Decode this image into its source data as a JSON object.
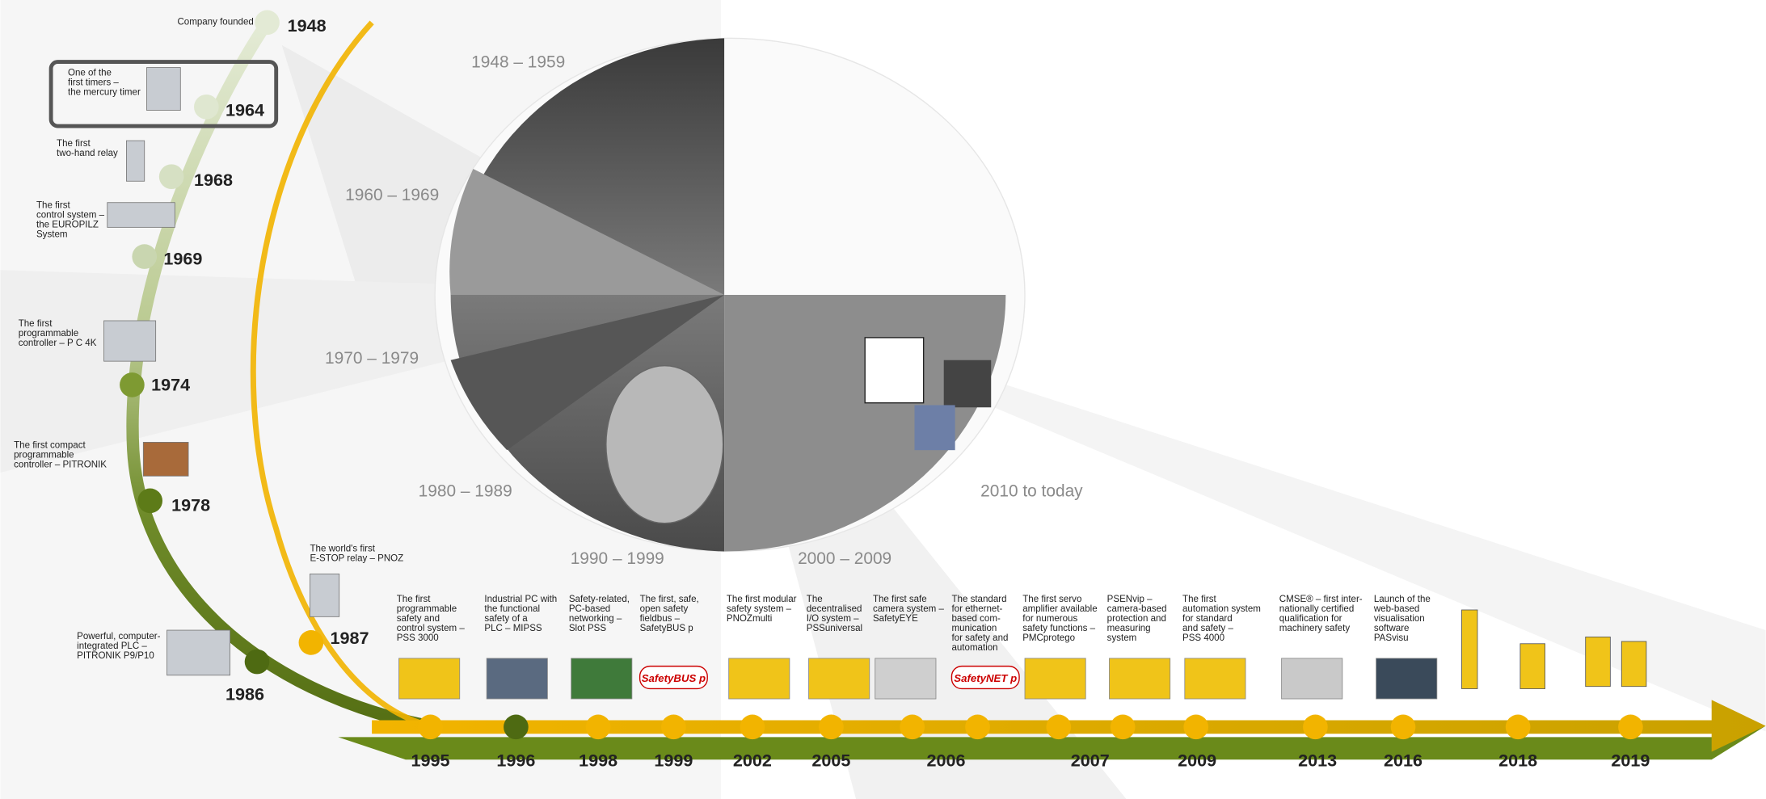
{
  "decades": [
    "1948 – 1959",
    "1960 – 1969",
    "1970 – 1979",
    "1980 – 1989",
    "1990 – 1999",
    "2000 – 2009",
    "2010 to today"
  ],
  "left_milestones": [
    {
      "year": "1948",
      "lines": [
        "Company founded"
      ]
    },
    {
      "year": "1964",
      "lines": [
        "One of the",
        "first timers –",
        "the mercury timer"
      ]
    },
    {
      "year": "1968",
      "lines": [
        "The first",
        "two-hand relay"
      ]
    },
    {
      "year": "1969",
      "lines": [
        "The first",
        "control system –",
        "the EUROPILZ",
        "System"
      ]
    },
    {
      "year": "1974",
      "lines": [
        "The first",
        "programmable",
        "controller – P C 4K"
      ]
    },
    {
      "year": "1978",
      "lines": [
        "The first compact",
        "programmable",
        "controller – PITRONIK"
      ]
    },
    {
      "year": "1986",
      "lines": [
        "Powerful, computer-",
        "integrated PLC –",
        "PITRONIK P9/P10"
      ]
    },
    {
      "year": "1987",
      "lines": [
        "The world's first",
        "E-STOP relay – PNOZ"
      ]
    }
  ],
  "bottom_events": [
    {
      "lines": [
        "The first",
        "programmable",
        "safety and",
        "control system –",
        "PSS 3000"
      ]
    },
    {
      "lines": [
        "Industrial PC with",
        "the functional",
        "safety of a",
        "PLC – MIPSS"
      ]
    },
    {
      "lines": [
        "Safety-related,",
        "PC-based",
        "networking –",
        "Slot PSS"
      ]
    },
    {
      "lines": [
        "The first, safe,",
        "open safety",
        "fieldbus –",
        "SafetyBUS p"
      ],
      "logo": "SafetyBUS p"
    },
    {
      "lines": [
        "The first modular",
        "safety system –",
        "PNOZmulti"
      ]
    },
    {
      "lines": [
        "The",
        "decentralised",
        "I/O system –",
        "PSSuniversal"
      ]
    },
    {
      "lines": [
        "The first safe",
        "camera system –",
        "SafetyEYE"
      ]
    },
    {
      "lines": [
        "The standard",
        "for ethernet-",
        "based com-",
        "munication",
        "for safety and",
        "automation"
      ],
      "logo": "SafetyNET p"
    },
    {
      "lines": [
        "The first servo",
        "amplifier available",
        "for numerous",
        "safety functions –",
        "PMCprotego"
      ]
    },
    {
      "lines": [
        "PSENvip –",
        "camera-based",
        "protection and",
        "measuring",
        "system"
      ]
    },
    {
      "lines": [
        "The first",
        "automation system",
        "for standard",
        "and safety –",
        "PSS 4000"
      ]
    },
    {
      "lines": [
        "CMSE® – first inter-",
        "nationally certified",
        "qualification for",
        "machinery safety"
      ]
    },
    {
      "lines": [
        "Launch of the",
        "web-based",
        "visualisation",
        "software",
        "PASvisu"
      ]
    }
  ],
  "axis_years": [
    "1995",
    "1996",
    "1998",
    "1999",
    "2002",
    "2005",
    "2006",
    "2007",
    "2009",
    "2013",
    "2016",
    "2018",
    "2019"
  ]
}
